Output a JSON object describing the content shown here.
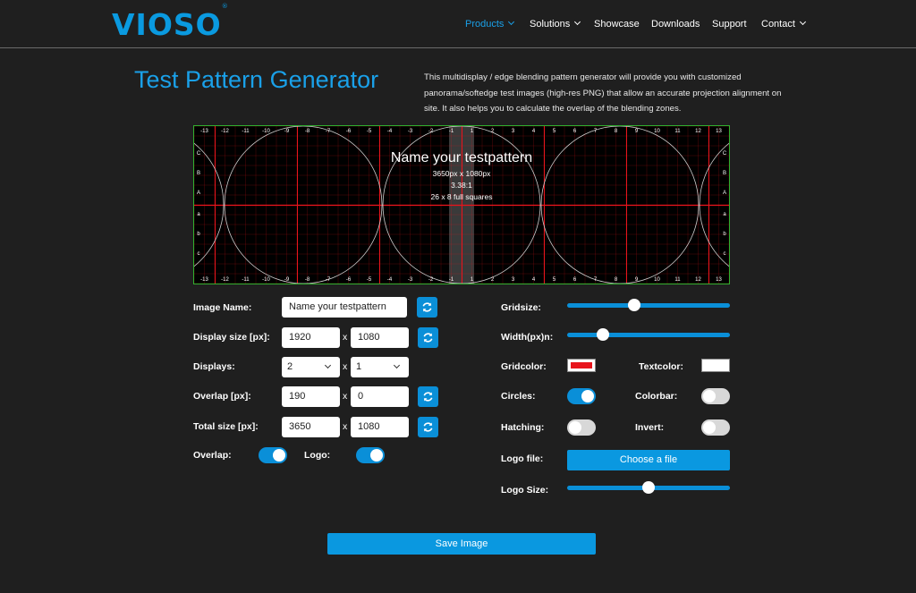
{
  "header": {
    "logo": "VIOSO",
    "logo_mark": "®",
    "nav": [
      {
        "label": "Products",
        "dropdown": true,
        "active": true
      },
      {
        "label": "Solutions",
        "dropdown": true
      },
      {
        "label": "Showcase"
      },
      {
        "label": "Downloads"
      },
      {
        "label": "Support"
      },
      {
        "label": "Contact",
        "dropdown": true
      }
    ]
  },
  "page": {
    "title": "Test Pattern Generator",
    "intro": "This multidisplay / edge blending pattern generator will provide you with customized panorama/softedge test images (high-res PNG) that allow an accurate projection alignment on site. It also helps you to calculate the overlap of the blending zones."
  },
  "preview": {
    "name": "Name your testpattern",
    "size": "3650px x 1080px",
    "ratio": "3.38:1",
    "squares": "26 x 8 full squares",
    "top_labels": [
      "-13",
      "-12",
      "-11",
      "-10",
      "-9",
      "-8",
      "-7",
      "-6",
      "-5",
      "-4",
      "-3",
      "-2",
      "-1",
      "1",
      "2",
      "3",
      "4",
      "5",
      "6",
      "7",
      "8",
      "9",
      "10",
      "11",
      "12",
      "13"
    ],
    "side_labels": [
      "C",
      "B",
      "A",
      "a",
      "b",
      "c"
    ],
    "grid_color": "#e8141c",
    "circle_color": "#cfcfcf"
  },
  "form": {
    "image_name": {
      "label": "Image Name:",
      "value": "Name your testpattern"
    },
    "display_size": {
      "label": "Display size [px]:",
      "w": "1920",
      "h": "1080"
    },
    "displays": {
      "label": "Displays:",
      "x": "2",
      "y": "1"
    },
    "overlap": {
      "label": "Overlap [px]:",
      "x": "190",
      "y": "0"
    },
    "total_size": {
      "label": "Total size [px]:",
      "w": "3650",
      "h": "1080"
    },
    "x_sep": "x",
    "overlap_toggle": {
      "label": "Overlap:",
      "on": true
    },
    "logo_toggle": {
      "label": "Logo:",
      "on": true
    },
    "gridsize": {
      "label": "Gridsize:",
      "value": 0.41
    },
    "width_n": {
      "label": "Width(px)n:",
      "value": 0.22
    },
    "gridcolor": {
      "label": "Gridcolor:",
      "color": "#e8141c"
    },
    "textcolor": {
      "label": "Textcolor:",
      "color": "#ffffff"
    },
    "circles": {
      "label": "Circles:",
      "on": true
    },
    "colorbar": {
      "label": "Colorbar:",
      "on": false
    },
    "hatching": {
      "label": "Hatching:",
      "on": false
    },
    "invert": {
      "label": "Invert:",
      "on": false
    },
    "logo_file": {
      "label": "Logo file:",
      "button": "Choose a file"
    },
    "logo_size": {
      "label": "Logo Size:",
      "value": 0.5
    },
    "save_button": "Save Image"
  },
  "colors": {
    "accent": "#0a98e0",
    "background": "#1f1f1f"
  }
}
